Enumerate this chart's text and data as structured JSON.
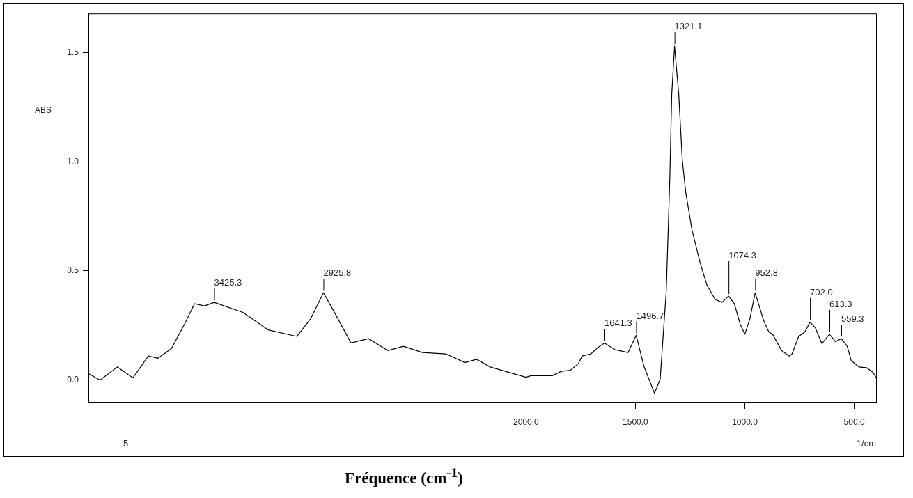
{
  "chart_data": {
    "type": "line",
    "xlabel": "Fréquence (cm$^{-1}$)",
    "ylabel": "ABS",
    "xlim": [
      4000,
      400
    ],
    "ylim": [
      -0.1,
      1.68
    ],
    "xticks": [
      {
        "value": 2000,
        "label": "2000.0"
      },
      {
        "value": 1500,
        "label": "1500.0"
      },
      {
        "value": 1000,
        "label": "1000.0"
      },
      {
        "value": 500,
        "label": "500.0"
      }
    ],
    "yticks": [
      {
        "value": 0,
        "label": "0.0"
      },
      {
        "value": 0.5,
        "label": "0.5"
      },
      {
        "value": 1.0,
        "label": "1.0"
      },
      {
        "value": 1.5,
        "label": "1.5"
      }
    ],
    "marker": "none",
    "line_style": "solid",
    "series": [
      {
        "color": "#000000",
        "x": [
          4000,
          3947,
          3868,
          3797,
          3726,
          3682,
          3620,
          3559,
          3515,
          3470,
          3425.3,
          3294,
          3179,
          3047,
          2985,
          2925.8,
          2870,
          2800,
          2720,
          2632,
          2561,
          2473,
          2367,
          2279,
          2226,
          2164,
          2000,
          1977,
          1880,
          1839,
          1797,
          1761,
          1744,
          1703,
          1671,
          1641.3,
          1595,
          1534,
          1496.7,
          1461,
          1413,
          1387,
          1359,
          1343,
          1334,
          1321.1,
          1302,
          1286,
          1270,
          1242,
          1205,
          1173,
          1136,
          1104,
          1074.3,
          1048,
          1021,
          1000,
          977,
          952.8,
          913,
          890,
          873,
          832,
          797,
          784,
          754,
          726,
          702,
          678,
          648,
          613.3,
          585,
          559.3,
          532,
          514,
          479,
          444,
          414,
          400
        ],
        "values": [
          0.03,
          0.0,
          0.06,
          0.01,
          0.11,
          0.1,
          0.145,
          0.26,
          0.35,
          0.34,
          0.356,
          0.31,
          0.23,
          0.2,
          0.28,
          0.4,
          0.3,
          0.17,
          0.19,
          0.135,
          0.155,
          0.126,
          0.12,
          0.08,
          0.095,
          0.06,
          0.013,
          0.02,
          0.02,
          0.04,
          0.045,
          0.075,
          0.11,
          0.12,
          0.15,
          0.17,
          0.14,
          0.126,
          0.205,
          0.063,
          -0.06,
          0.003,
          0.41,
          0.92,
          1.31,
          1.53,
          1.31,
          1.01,
          0.86,
          0.69,
          0.54,
          0.435,
          0.37,
          0.356,
          0.385,
          0.35,
          0.255,
          0.21,
          0.28,
          0.4,
          0.27,
          0.22,
          0.21,
          0.135,
          0.11,
          0.12,
          0.2,
          0.22,
          0.265,
          0.24,
          0.167,
          0.21,
          0.176,
          0.19,
          0.155,
          0.09,
          0.06,
          0.057,
          0.035,
          0.01
        ]
      }
    ],
    "annotations": [
      {
        "text": "3425.3",
        "x": 3425.3,
        "y": 0.356
      },
      {
        "text": "2925.8",
        "x": 2925.8,
        "y": 0.4
      },
      {
        "text": "1641.3",
        "x": 1641.3,
        "y": 0.17
      },
      {
        "text": "1496.7",
        "x": 1496.7,
        "y": 0.205
      },
      {
        "text": "1321.1",
        "x": 1321.1,
        "y": 1.53
      },
      {
        "text": "1074.3",
        "x": 1074.3,
        "y": 0.385
      },
      {
        "text": "952.8",
        "x": 952.8,
        "y": 0.4
      },
      {
        "text": "702.0",
        "x": 702.0,
        "y": 0.265
      },
      {
        "text": "613.3",
        "x": 613.3,
        "y": 0.21
      },
      {
        "text": "559.3",
        "x": 559.3,
        "y": 0.19
      },
      "5",
      "1/cm"
    ]
  }
}
